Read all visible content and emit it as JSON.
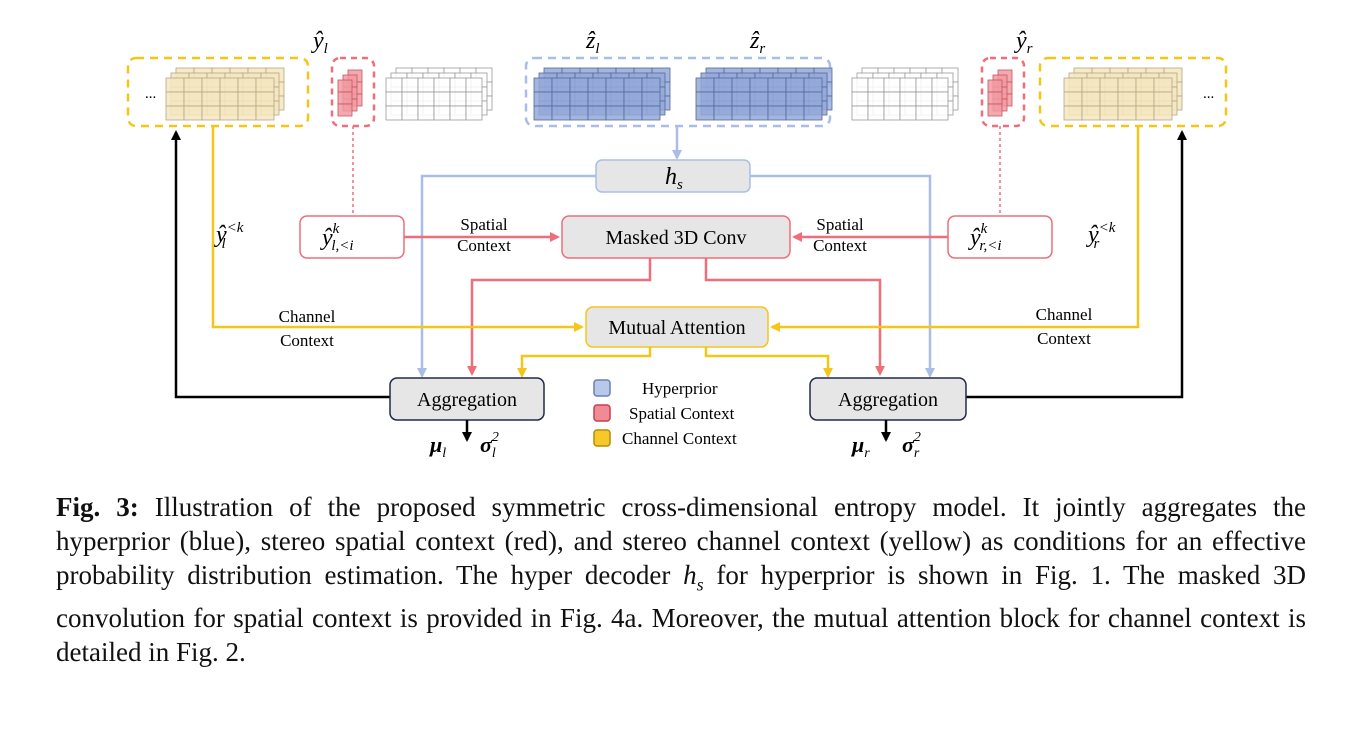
{
  "diagram": {
    "left_latent_label": "ŷ",
    "left_latent_sub": "l",
    "right_latent_label": "ŷ",
    "right_latent_sub": "r",
    "z_left_label": "ẑ",
    "z_left_sub": "l",
    "z_right_label": "ẑ",
    "z_right_sub": "r",
    "ellipsis": "...",
    "hs_label": "h",
    "hs_sub": "s",
    "masked_conv_label": "Masked 3D Conv",
    "mutual_attention_label": "Mutual Attention",
    "aggregation_left_label": "Aggregation",
    "aggregation_right_label": "Aggregation",
    "spatial_context_left": [
      "Spatial",
      "Context"
    ],
    "spatial_context_right": [
      "Spatial",
      "Context"
    ],
    "channel_context_left": [
      "Channel",
      "Context"
    ],
    "channel_context_right": [
      "Channel",
      "Context"
    ],
    "y_lk_label": "ŷ",
    "y_lk_sup": "<k",
    "y_lk_sub": "l",
    "y_rk_label": "ŷ",
    "y_rk_sup": "<k",
    "y_rk_sub": "r",
    "y_l_ctx_label": "ŷ",
    "y_l_ctx_sup": "k",
    "y_l_ctx_sub": "l,<i",
    "y_r_ctx_label": "ŷ",
    "y_r_ctx_sup": "k",
    "y_r_ctx_sub": "r,<i",
    "mu_l": "μ",
    "mu_l_sub": "l",
    "sigma_l": "σ",
    "sigma_l_sup": "2",
    "sigma_l_sub": "l",
    "mu_r": "μ",
    "mu_r_sub": "r",
    "sigma_r": "σ",
    "sigma_r_sup": "2",
    "sigma_r_sub": "r",
    "legend": [
      {
        "label": "Hyperprior",
        "color": "#b8c8e8",
        "stroke": "#6b7fb8"
      },
      {
        "label": "Spatial Context",
        "color": "#f08a94",
        "stroke": "#c2414f"
      },
      {
        "label": "Channel Context",
        "color": "#f7c928",
        "stroke": "#b58b06"
      }
    ],
    "colors": {
      "hyperprior": "#a9bde6",
      "spatial": "#ee6e7a",
      "channel": "#f5c518",
      "black": "#000000"
    }
  },
  "caption": {
    "fig_label": "Fig. 3:",
    "part1": " Illustration of the proposed symmetric cross-dimensional entropy model. It jointly aggregates the hyperprior (blue), stereo spatial context (red), and stereo channel context (yellow) as conditions for an effective probability distribution estimation. The hyper decoder ",
    "hs_symbol": "h",
    "hs_sub": "s",
    "part2": " for hyperprior is shown in Fig. 1. The masked 3D convolution for spatial context is provided in Fig. 4a. Moreover, the mutual attention block for channel context is detailed in Fig. 2."
  }
}
